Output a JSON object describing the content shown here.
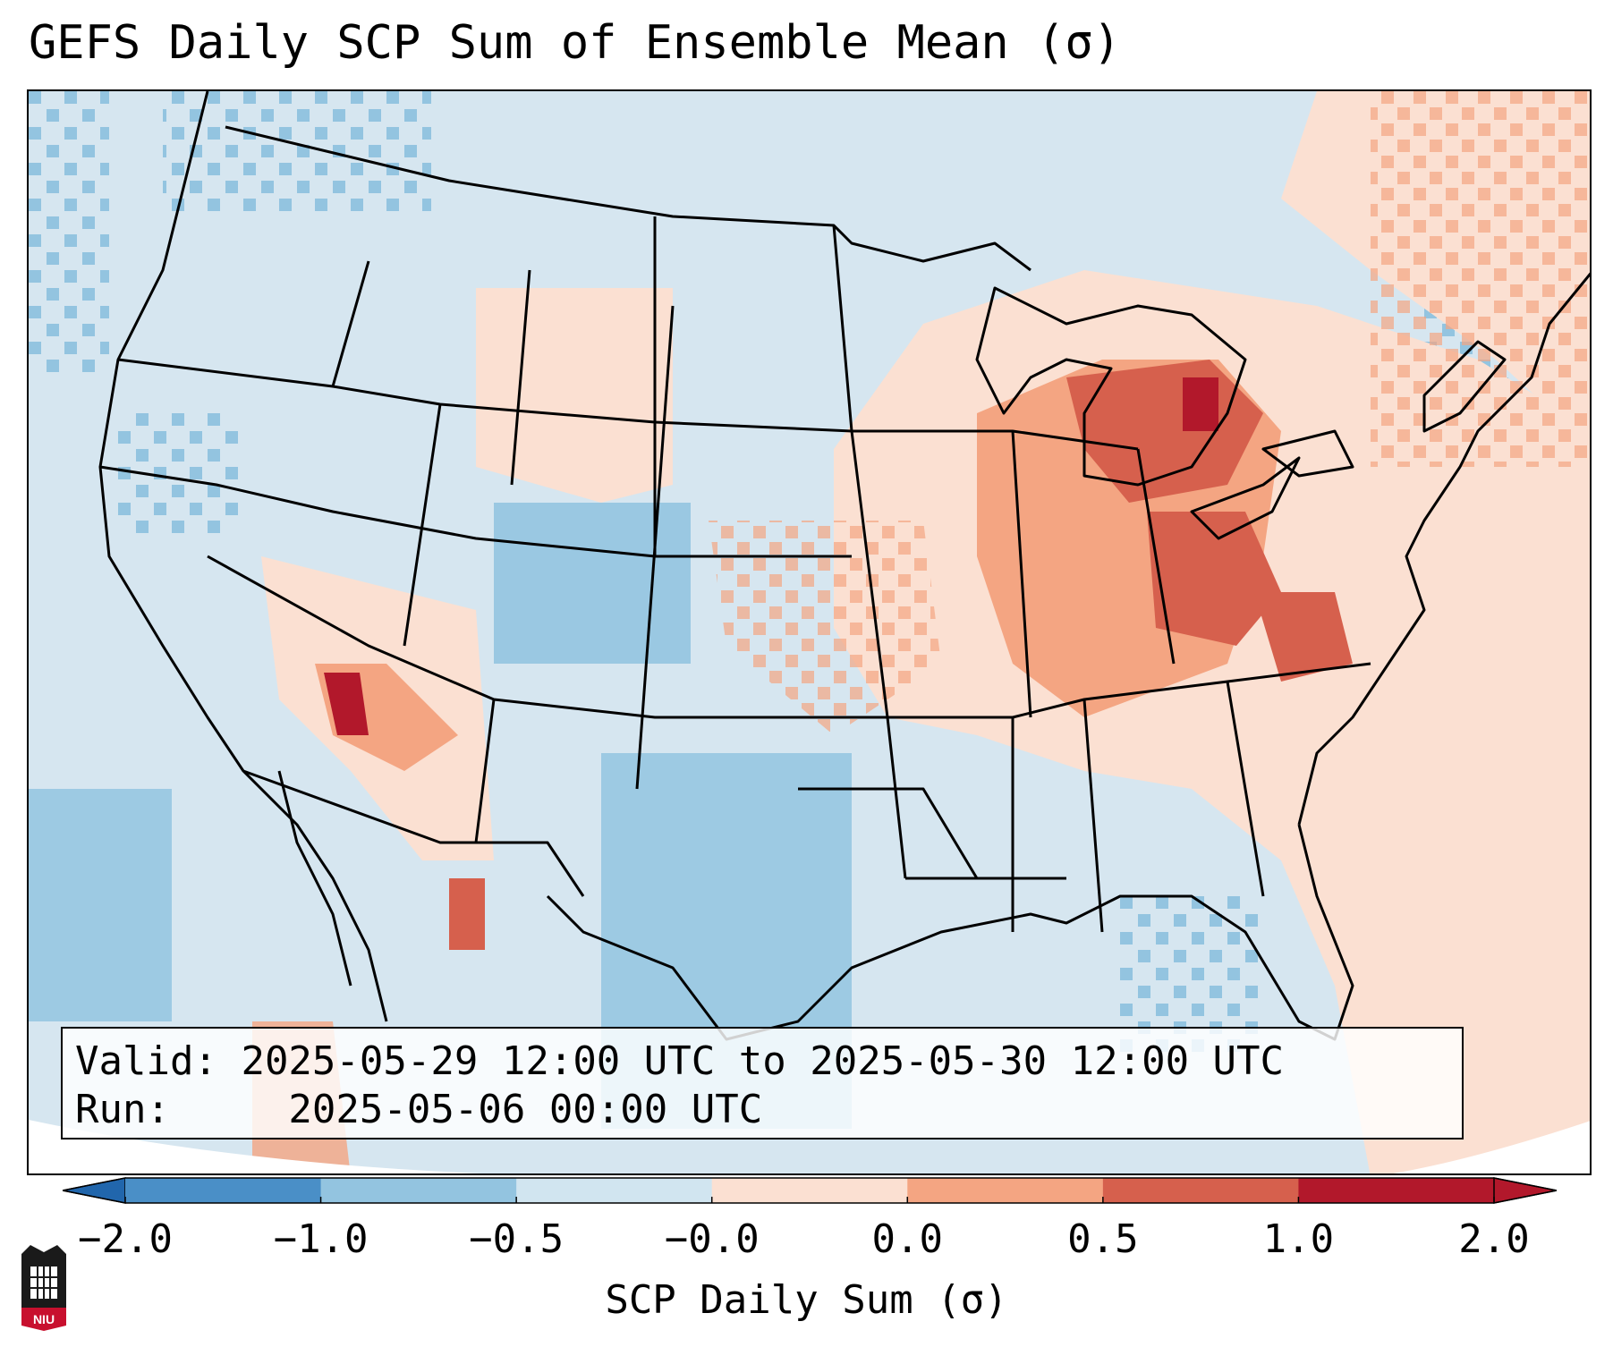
{
  "title": "GEFS Daily SCP Sum of Ensemble Mean (σ)",
  "info": {
    "valid_label": "Valid:",
    "valid_value": "2025-05-29 12:00 UTC to 2025-05-30 12:00 UTC",
    "run_label": "Run:",
    "run_value": "2025-05-06 00:00 UTC"
  },
  "colorbar": {
    "label": "SCP Daily Sum (σ)",
    "ticks": [
      "−2.0",
      "−1.0",
      "−0.5",
      "−0.0",
      "0.0",
      "0.5",
      "1.0",
      "2.0"
    ],
    "colors": [
      "#4a8fc7",
      "#93c4e0",
      "#d1e5f0",
      "#fbe0d2",
      "#f4a582",
      "#d6604d",
      "#b2182b"
    ],
    "under_color": "#2166ac",
    "over_color": "#b2182b"
  },
  "logo": {
    "text": "NIU",
    "color": "#c8102e"
  },
  "map": {
    "background_color": "#d6e6f0",
    "region": "Contiguous United States"
  }
}
